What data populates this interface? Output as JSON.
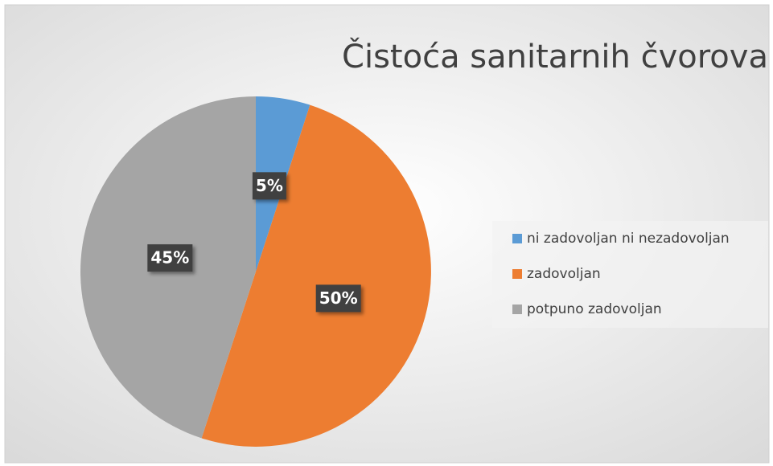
{
  "chart_data": {
    "type": "pie",
    "title": "Čistoća sanitarnih čvorova",
    "categories": [
      "ni zadovoljan ni nezadovoljan",
      "zadovoljan",
      "potpuno zadovoljan"
    ],
    "values": [
      5,
      50,
      45
    ],
    "value_labels": [
      "5%",
      "50%",
      "45%"
    ],
    "colors": [
      "#5b9bd5",
      "#ed7d31",
      "#a5a5a5"
    ],
    "legend": "right"
  }
}
